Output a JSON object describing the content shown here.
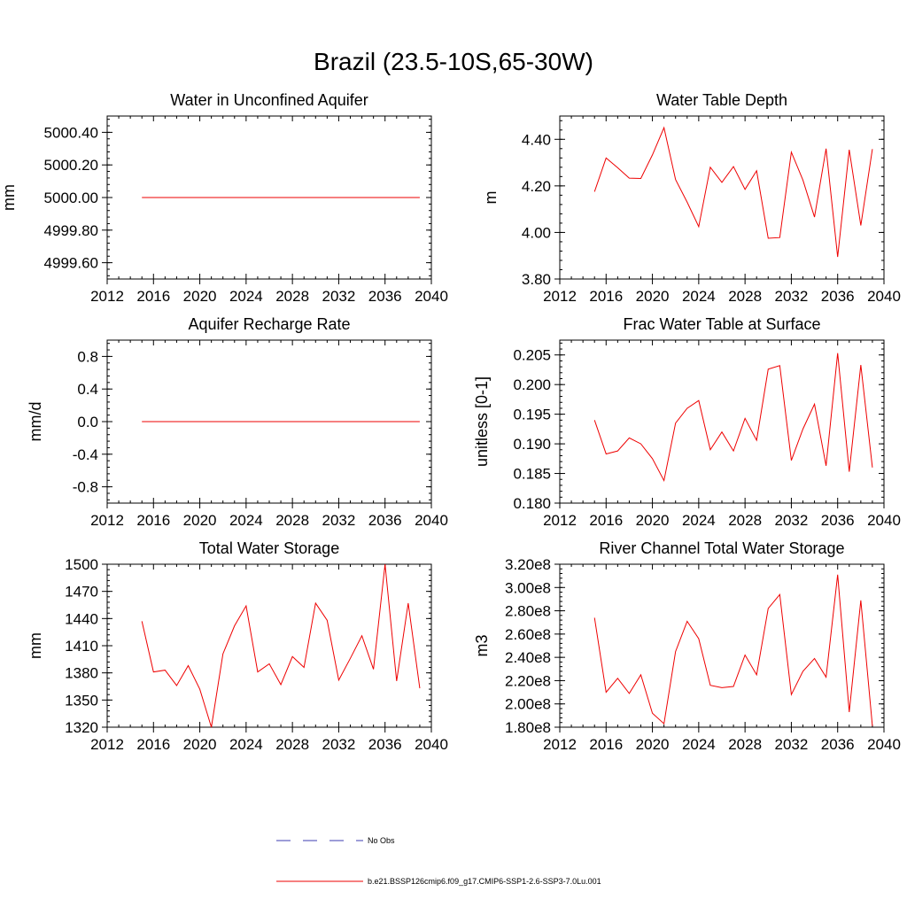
{
  "title": "Brazil (23.5-10S,65-30W)",
  "legend": [
    {
      "label": "No Obs",
      "color": "#3b3bb0",
      "style": "dashed"
    },
    {
      "label": "b.e21.BSSP126cmip6.f09_g17.CMIP6-SSP1-2.6-SSP3-7.0Lu.001",
      "color": "#ee0000",
      "style": "solid"
    }
  ],
  "chart_data": [
    {
      "type": "line",
      "title": "Water in Unconfined Aquifer",
      "ylabel": "mm",
      "xlim": [
        2012,
        2040
      ],
      "ylim": [
        4999.5,
        5000.5
      ],
      "xticks": [
        2012,
        2016,
        2020,
        2024,
        2028,
        2032,
        2036,
        2040
      ],
      "xtick_labels": [
        "2012",
        "2016",
        "2020",
        "2024",
        "2028",
        "2032",
        "2036",
        "2040"
      ],
      "yticks": [
        4999.6,
        4999.8,
        5000.0,
        5000.2,
        5000.4
      ],
      "ytick_labels": [
        "4999.60",
        "4999.80",
        "5000.00",
        "5000.20",
        "5000.40"
      ],
      "series": [
        {
          "color": "#ee0000",
          "x": [
            2015,
            2016,
            2017,
            2018,
            2019,
            2020,
            2021,
            2022,
            2023,
            2024,
            2025,
            2026,
            2027,
            2028,
            2029,
            2030,
            2031,
            2032,
            2033,
            2034,
            2035,
            2036,
            2037,
            2038,
            2039
          ],
          "y": [
            5000,
            5000,
            5000,
            5000,
            5000,
            5000,
            5000,
            5000,
            5000,
            5000,
            5000,
            5000,
            5000,
            5000,
            5000,
            5000,
            5000,
            5000,
            5000,
            5000,
            5000,
            5000,
            5000,
            5000,
            5000
          ]
        }
      ]
    },
    {
      "type": "line",
      "title": "Water Table Depth",
      "ylabel": "m",
      "xlim": [
        2012,
        2040
      ],
      "ylim": [
        3.8,
        4.5
      ],
      "xticks": [
        2012,
        2016,
        2020,
        2024,
        2028,
        2032,
        2036,
        2040
      ],
      "xtick_labels": [
        "2012",
        "2016",
        "2020",
        "2024",
        "2028",
        "2032",
        "2036",
        "2040"
      ],
      "yticks": [
        3.8,
        4.0,
        4.2,
        4.4
      ],
      "ytick_labels": [
        "3.80",
        "4.00",
        "4.20",
        "4.40"
      ],
      "series": [
        {
          "color": "#ee0000",
          "x": [
            2015,
            2016,
            2017,
            2018,
            2019,
            2020,
            2021,
            2022,
            2023,
            2024,
            2025,
            2026,
            2027,
            2028,
            2029,
            2030,
            2031,
            2032,
            2033,
            2034,
            2035,
            2036,
            2037,
            2038,
            2039
          ],
          "y": [
            4.175,
            4.32,
            4.278,
            4.233,
            4.232,
            4.333,
            4.45,
            4.227,
            4.13,
            4.025,
            4.28,
            4.215,
            4.283,
            4.185,
            4.265,
            3.975,
            3.978,
            4.345,
            4.225,
            4.066,
            4.36,
            3.895,
            4.355,
            4.03,
            4.358
          ]
        }
      ]
    },
    {
      "type": "line",
      "title": "Aquifer Recharge Rate",
      "ylabel": "mm/d",
      "xlim": [
        2012,
        2040
      ],
      "ylim": [
        -1.0,
        1.0
      ],
      "xticks": [
        2012,
        2016,
        2020,
        2024,
        2028,
        2032,
        2036,
        2040
      ],
      "xtick_labels": [
        "2012",
        "2016",
        "2020",
        "2024",
        "2028",
        "2032",
        "2036",
        "2040"
      ],
      "yticks": [
        -0.8,
        -0.4,
        0.0,
        0.4,
        0.8
      ],
      "ytick_labels": [
        "-0.8",
        "-0.4",
        "0.0",
        "0.4",
        "0.8"
      ],
      "series": [
        {
          "color": "#ee0000",
          "x": [
            2015,
            2016,
            2017,
            2018,
            2019,
            2020,
            2021,
            2022,
            2023,
            2024,
            2025,
            2026,
            2027,
            2028,
            2029,
            2030,
            2031,
            2032,
            2033,
            2034,
            2035,
            2036,
            2037,
            2038,
            2039
          ],
          "y": [
            0,
            0,
            0,
            0,
            0,
            0,
            0,
            0,
            0,
            0,
            0,
            0,
            0,
            0,
            0,
            0,
            0,
            0,
            0,
            0,
            0,
            0,
            0,
            0,
            0
          ]
        }
      ]
    },
    {
      "type": "line",
      "title": "Frac Water Table at Surface",
      "ylabel": "unitless [0-1]",
      "xlim": [
        2012,
        2040
      ],
      "ylim": [
        0.18,
        0.2075
      ],
      "xticks": [
        2012,
        2016,
        2020,
        2024,
        2028,
        2032,
        2036,
        2040
      ],
      "xtick_labels": [
        "2012",
        "2016",
        "2020",
        "2024",
        "2028",
        "2032",
        "2036",
        "2040"
      ],
      "yticks": [
        0.18,
        0.185,
        0.19,
        0.195,
        0.2,
        0.205
      ],
      "ytick_labels": [
        "0.180",
        "0.185",
        "0.190",
        "0.195",
        "0.200",
        "0.205"
      ],
      "series": [
        {
          "color": "#ee0000",
          "x": [
            2015,
            2016,
            2017,
            2018,
            2019,
            2020,
            2021,
            2022,
            2023,
            2024,
            2025,
            2026,
            2027,
            2028,
            2029,
            2030,
            2031,
            2032,
            2033,
            2034,
            2035,
            2036,
            2037,
            2038,
            2039
          ],
          "y": [
            0.194,
            0.1883,
            0.1888,
            0.191,
            0.19,
            0.1875,
            0.1838,
            0.1935,
            0.196,
            0.1973,
            0.189,
            0.192,
            0.1888,
            0.1943,
            0.1906,
            0.2026,
            0.2032,
            0.1872,
            0.1925,
            0.1967,
            0.1863,
            0.2053,
            0.1853,
            0.2033,
            0.186
          ]
        }
      ]
    },
    {
      "type": "line",
      "title": "Total Water Storage",
      "ylabel": "mm",
      "xlim": [
        2012,
        2040
      ],
      "ylim": [
        1320,
        1500
      ],
      "xticks": [
        2012,
        2016,
        2020,
        2024,
        2028,
        2032,
        2036,
        2040
      ],
      "xtick_labels": [
        "2012",
        "2016",
        "2020",
        "2024",
        "2028",
        "2032",
        "2036",
        "2040"
      ],
      "yticks": [
        1320,
        1350,
        1380,
        1410,
        1440,
        1470,
        1500
      ],
      "ytick_labels": [
        "1320",
        "1350",
        "1380",
        "1410",
        "1440",
        "1470",
        "1500"
      ],
      "series": [
        {
          "color": "#ee0000",
          "x": [
            2015,
            2016,
            2017,
            2018,
            2019,
            2020,
            2021,
            2022,
            2023,
            2024,
            2025,
            2026,
            2027,
            2028,
            2029,
            2030,
            2031,
            2032,
            2033,
            2034,
            2035,
            2036,
            2037,
            2038,
            2039
          ],
          "y": [
            1437,
            1381,
            1383,
            1366,
            1388,
            1362,
            1320,
            1401,
            1432,
            1454,
            1381,
            1390,
            1367,
            1398,
            1386,
            1457,
            1438,
            1372,
            1396,
            1421,
            1384,
            1500,
            1371,
            1457,
            1363
          ]
        }
      ]
    },
    {
      "type": "line",
      "title": "River Channel Total Water Storage",
      "ylabel": "m3",
      "xlim": [
        2012,
        2040
      ],
      "ylim": [
        180000000,
        320000000
      ],
      "xticks": [
        2012,
        2016,
        2020,
        2024,
        2028,
        2032,
        2036,
        2040
      ],
      "xtick_labels": [
        "2012",
        "2016",
        "2020",
        "2024",
        "2028",
        "2032",
        "2036",
        "2040"
      ],
      "yticks": [
        180000000,
        200000000,
        220000000,
        240000000,
        260000000,
        280000000,
        300000000,
        320000000
      ],
      "ytick_labels": [
        "1.80e8",
        "2.00e8",
        "2.20e8",
        "2.40e8",
        "2.60e8",
        "2.80e8",
        "3.00e8",
        "3.20e8"
      ],
      "series": [
        {
          "color": "#ee0000",
          "x": [
            2015,
            2016,
            2017,
            2018,
            2019,
            2020,
            2021,
            2022,
            2023,
            2024,
            2025,
            2026,
            2027,
            2028,
            2029,
            2030,
            2031,
            2032,
            2033,
            2034,
            2035,
            2036,
            2037,
            2038,
            2039
          ],
          "y": [
            274000000,
            210000000,
            222000000,
            209000000,
            225000000,
            192000000,
            183000000,
            245000000,
            271000000,
            256000000,
            216000000,
            214000000,
            215000000,
            242000000,
            225000000,
            282000000,
            294000000,
            208000000,
            228000000,
            239000000,
            223000000,
            311000000,
            193000000,
            289000000,
            181000000
          ]
        }
      ]
    }
  ]
}
